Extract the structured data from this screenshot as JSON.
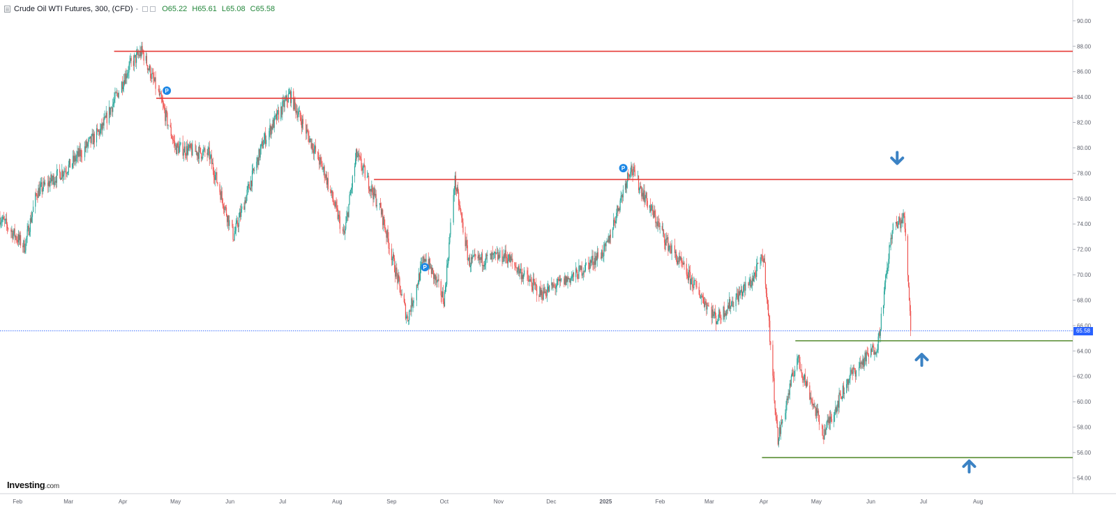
{
  "header": {
    "title": "Crude Oil WTI Futures, 300, (CFD)",
    "dash": "-",
    "open": "O65.22",
    "high": "H65.61",
    "low": "L65.08",
    "close": "C65.58"
  },
  "logo": {
    "brand": "Investing",
    "suffix": ".com"
  },
  "current_price_label": "65.58",
  "colors": {
    "up": "#26a69a",
    "down": "#ef5350",
    "resistance": "#e53935",
    "support": "#558b2f",
    "arrow": "#3b82c4",
    "marker": "#1e88e5",
    "price_line": "#2962ff"
  },
  "icons": {
    "menu": "menu-icon",
    "arrows": "arrow-icon",
    "markers": "p-marker-icon"
  },
  "chart_data": {
    "type": "candlestick",
    "symbol": "Crude Oil WTI Futures",
    "interval": "300",
    "xlabel": "",
    "ylabel": "",
    "x_tick_labels": [
      "Feb",
      "Mar",
      "Apr",
      "May",
      "Jun",
      "Jul",
      "Aug",
      "Sep",
      "Oct",
      "Nov",
      "Dec",
      "2025",
      "Feb",
      "Mar",
      "Apr",
      "May",
      "Jun",
      "Jul",
      "Aug"
    ],
    "y_tick_labels": [
      "54.00",
      "56.00",
      "58.00",
      "60.00",
      "62.00",
      "64.00",
      "66.00",
      "68.00",
      "70.00",
      "72.00",
      "74.00",
      "76.00",
      "78.00",
      "80.00",
      "82.00",
      "84.00",
      "86.00",
      "88.00",
      "90.00"
    ],
    "ylim": [
      53.2,
      91.2
    ],
    "x_range": [
      "2024-01-22",
      "2025-09-24"
    ],
    "current_price": 65.58,
    "price_path": [
      [
        "2024-01-22",
        74.5
      ],
      [
        "2024-02-05",
        72.2
      ],
      [
        "2024-02-12",
        76.5
      ],
      [
        "2024-03-01",
        78.5
      ],
      [
        "2024-03-20",
        81.5
      ],
      [
        "2024-04-05",
        86.5
      ],
      [
        "2024-04-12",
        87.6
      ],
      [
        "2024-04-22",
        84.0
      ],
      [
        "2024-05-01",
        80.0
      ],
      [
        "2024-05-20",
        79.5
      ],
      [
        "2024-06-03",
        73.0
      ],
      [
        "2024-06-20",
        80.5
      ],
      [
        "2024-07-05",
        84.2
      ],
      [
        "2024-07-25",
        78.0
      ],
      [
        "2024-08-05",
        73.0
      ],
      [
        "2024-08-12",
        79.5
      ],
      [
        "2024-08-26",
        75.0
      ],
      [
        "2024-09-10",
        66.5
      ],
      [
        "2024-09-20",
        71.5
      ],
      [
        "2024-10-01",
        68.0
      ],
      [
        "2024-10-07",
        77.5
      ],
      [
        "2024-10-15",
        71.0
      ],
      [
        "2024-11-05",
        71.5
      ],
      [
        "2024-11-25",
        68.5
      ],
      [
        "2024-12-15",
        70.0
      ],
      [
        "2025-01-01",
        72.0
      ],
      [
        "2025-01-15",
        78.5
      ],
      [
        "2025-02-05",
        72.5
      ],
      [
        "2025-03-05",
        66.5
      ],
      [
        "2025-03-25",
        69.5
      ],
      [
        "2025-04-01",
        71.5
      ],
      [
        "2025-04-09",
        57.0
      ],
      [
        "2025-04-20",
        63.5
      ],
      [
        "2025-05-05",
        57.5
      ],
      [
        "2025-05-20",
        62.0
      ],
      [
        "2025-06-05",
        64.5
      ],
      [
        "2025-06-13",
        73.5
      ],
      [
        "2025-06-20",
        74.5
      ],
      [
        "2025-06-23",
        68.0
      ],
      [
        "2025-06-24",
        65.6
      ]
    ],
    "horizontal_levels": [
      {
        "kind": "resistance",
        "value": 87.6,
        "from": "2024-03-27"
      },
      {
        "kind": "resistance",
        "value": 83.9,
        "from": "2024-04-20"
      },
      {
        "kind": "resistance",
        "value": 77.5,
        "from": "2024-08-22"
      },
      {
        "kind": "support",
        "value": 64.8,
        "from": "2025-04-19"
      },
      {
        "kind": "support",
        "value": 55.6,
        "from": "2025-03-31"
      }
    ],
    "arrows": [
      {
        "direction": "down",
        "date": "2025-06-16",
        "value": 79.2
      },
      {
        "direction": "up",
        "date": "2025-06-30",
        "value": 63.3
      },
      {
        "direction": "up",
        "date": "2025-07-27",
        "value": 54.9
      }
    ],
    "markers": [
      {
        "label": "P",
        "date": "2024-04-26",
        "value": 84.5
      },
      {
        "label": "P",
        "date": "2024-09-20",
        "value": 70.6
      },
      {
        "label": "P",
        "date": "2025-01-11",
        "value": 78.4
      }
    ],
    "grid": false,
    "legend": "none"
  }
}
